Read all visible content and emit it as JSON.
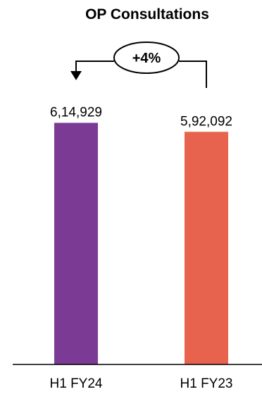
{
  "chart_data": {
    "type": "bar",
    "title": "OP Consultations",
    "categories": [
      "H1 FY24",
      "H1 FY23"
    ],
    "values": [
      614929,
      592092
    ],
    "value_labels": [
      "6,14,929",
      "5,92,092"
    ],
    "colors": [
      "#7B3A94",
      "#E8634D"
    ],
    "annotation": "+4%",
    "grid": false,
    "legend": "none",
    "ylim": [
      0,
      650000
    ]
  }
}
